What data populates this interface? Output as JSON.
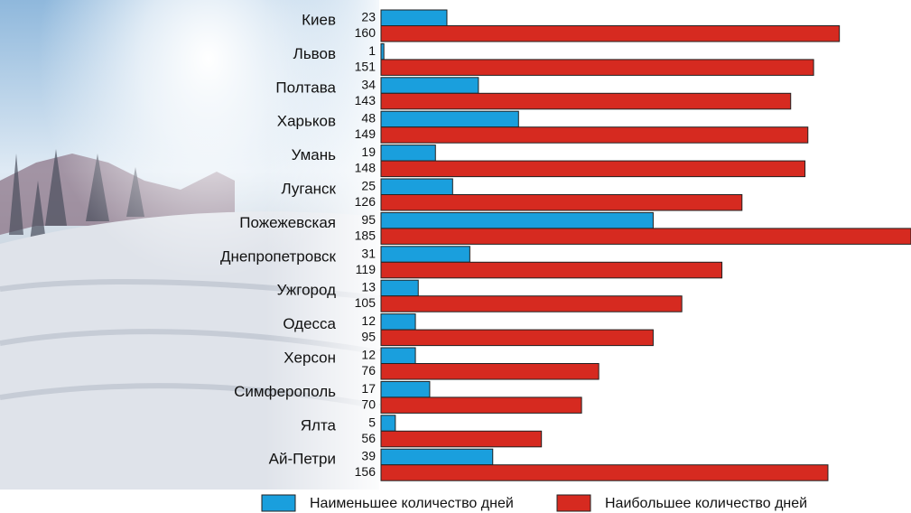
{
  "chart_data": {
    "type": "bar",
    "orientation": "horizontal",
    "categories": [
      "Киев",
      "Львов",
      "Полтава",
      "Харьков",
      "Умань",
      "Луганск",
      "Пожежевская",
      "Днепропетровск",
      "Ужгород",
      "Одесса",
      "Херсон",
      "Симферополь",
      "Ялта",
      "Ай-Петри"
    ],
    "series": [
      {
        "name": "Наименьшее количество дней",
        "color": "#1a9fdd",
        "values": [
          23,
          1,
          34,
          48,
          19,
          25,
          95,
          31,
          13,
          12,
          12,
          17,
          5,
          39
        ]
      },
      {
        "name": "Наибольшее количество дней",
        "color": "#d62a20",
        "values": [
          160,
          151,
          143,
          149,
          148,
          126,
          185,
          119,
          105,
          95,
          76,
          70,
          56,
          156
        ]
      }
    ]
  }
}
